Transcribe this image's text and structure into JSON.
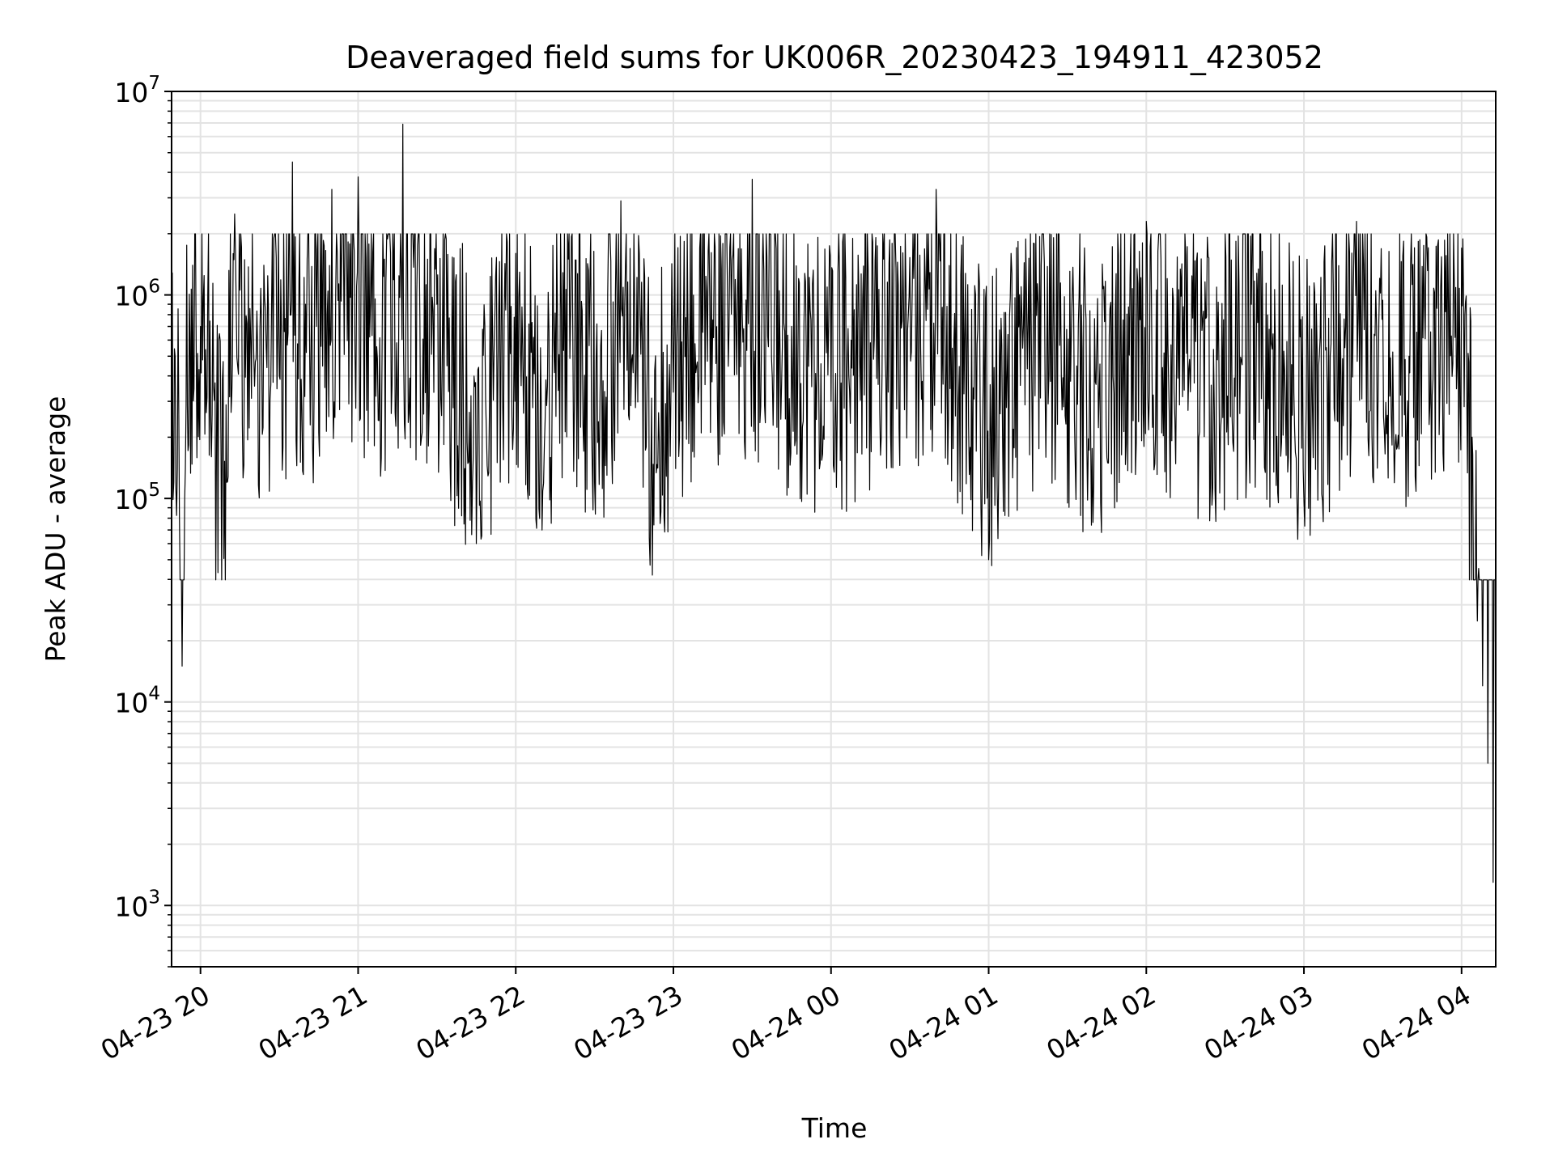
{
  "chart_data": {
    "type": "line",
    "title": "Deaveraged field sums for UK006R_20230423_194911_423052",
    "xlabel": "Time",
    "ylabel": "Peak ADU - average",
    "y_scale": "log",
    "ylim": [
      500,
      10000000
    ],
    "xlim": [
      "2023-04-23 19:49",
      "2023-04-24 04:13"
    ],
    "grid": true,
    "x_tick_labels": [
      "04-23 20",
      "04-23 21",
      "04-23 22",
      "04-23 23",
      "04-24 00",
      "04-24 01",
      "04-24 02",
      "04-24 03",
      "04-24 04"
    ],
    "y_ticks": [
      {
        "base": "10",
        "exp": "3",
        "value": 1000
      },
      {
        "base": "10",
        "exp": "4",
        "value": 10000
      },
      {
        "base": "10",
        "exp": "5",
        "value": 100000
      },
      {
        "base": "10",
        "exp": "6",
        "value": 1000000
      },
      {
        "base": "10",
        "exp": "7",
        "value": 10000000
      }
    ],
    "series": [
      {
        "color": "#000000",
        "x": [
          "2023-04-23 19:49",
          "2023-04-23 19:52",
          "2023-04-23 19:53",
          "2023-04-23 19:54",
          "2023-04-23 19:56",
          "2023-04-23 19:57",
          "2023-04-23 20:00",
          "2023-04-23 20:05",
          "2023-04-23 20:10",
          "2023-04-23 20:13",
          "2023-04-23 20:20",
          "2023-04-23 20:30",
          "2023-04-23 20:35",
          "2023-04-23 20:40",
          "2023-04-23 20:50",
          "2023-04-23 21:00",
          "2023-04-23 21:10",
          "2023-04-23 21:17",
          "2023-04-23 21:30",
          "2023-04-23 21:45",
          "2023-04-23 22:00",
          "2023-04-23 22:10",
          "2023-04-23 22:20",
          "2023-04-23 22:30",
          "2023-04-23 22:40",
          "2023-04-23 22:52",
          "2023-04-23 23:10",
          "2023-04-23 23:30",
          "2023-04-23 23:45",
          "2023-04-24 00:00",
          "2023-04-24 00:20",
          "2023-04-24 00:40",
          "2023-04-24 01:00",
          "2023-04-24 01:20",
          "2023-04-24 01:40",
          "2023-04-24 02:00",
          "2023-04-24 02:20",
          "2023-04-24 02:40",
          "2023-04-24 03:00",
          "2023-04-24 03:20",
          "2023-04-24 03:40",
          "2023-04-24 03:55",
          "2023-04-24 04:00",
          "2023-04-24 04:02",
          "2023-04-24 04:04",
          "2023-04-24 04:06",
          "2023-04-24 04:08",
          "2023-04-24 04:10",
          "2023-04-24 04:12",
          "2023-04-24 04:13"
        ],
        "values": [
          850000,
          80000,
          15000,
          100000,
          600000,
          1400000,
          700000,
          350000,
          120000,
          2500000,
          800000,
          400000,
          4500000,
          900000,
          3300000,
          3800000,
          1500000,
          6900000,
          900000,
          60000,
          1600000,
          70000,
          1500000,
          120000,
          2900000,
          42000,
          1700000,
          3700000,
          700000,
          300000,
          1500000,
          3300000,
          50000,
          1400000,
          120000,
          2300000,
          200000,
          900000,
          100000,
          2300000,
          500000,
          900000,
          1700000,
          300000,
          200000,
          25000,
          12000,
          5000,
          1300,
          900
        ]
      }
    ]
  }
}
